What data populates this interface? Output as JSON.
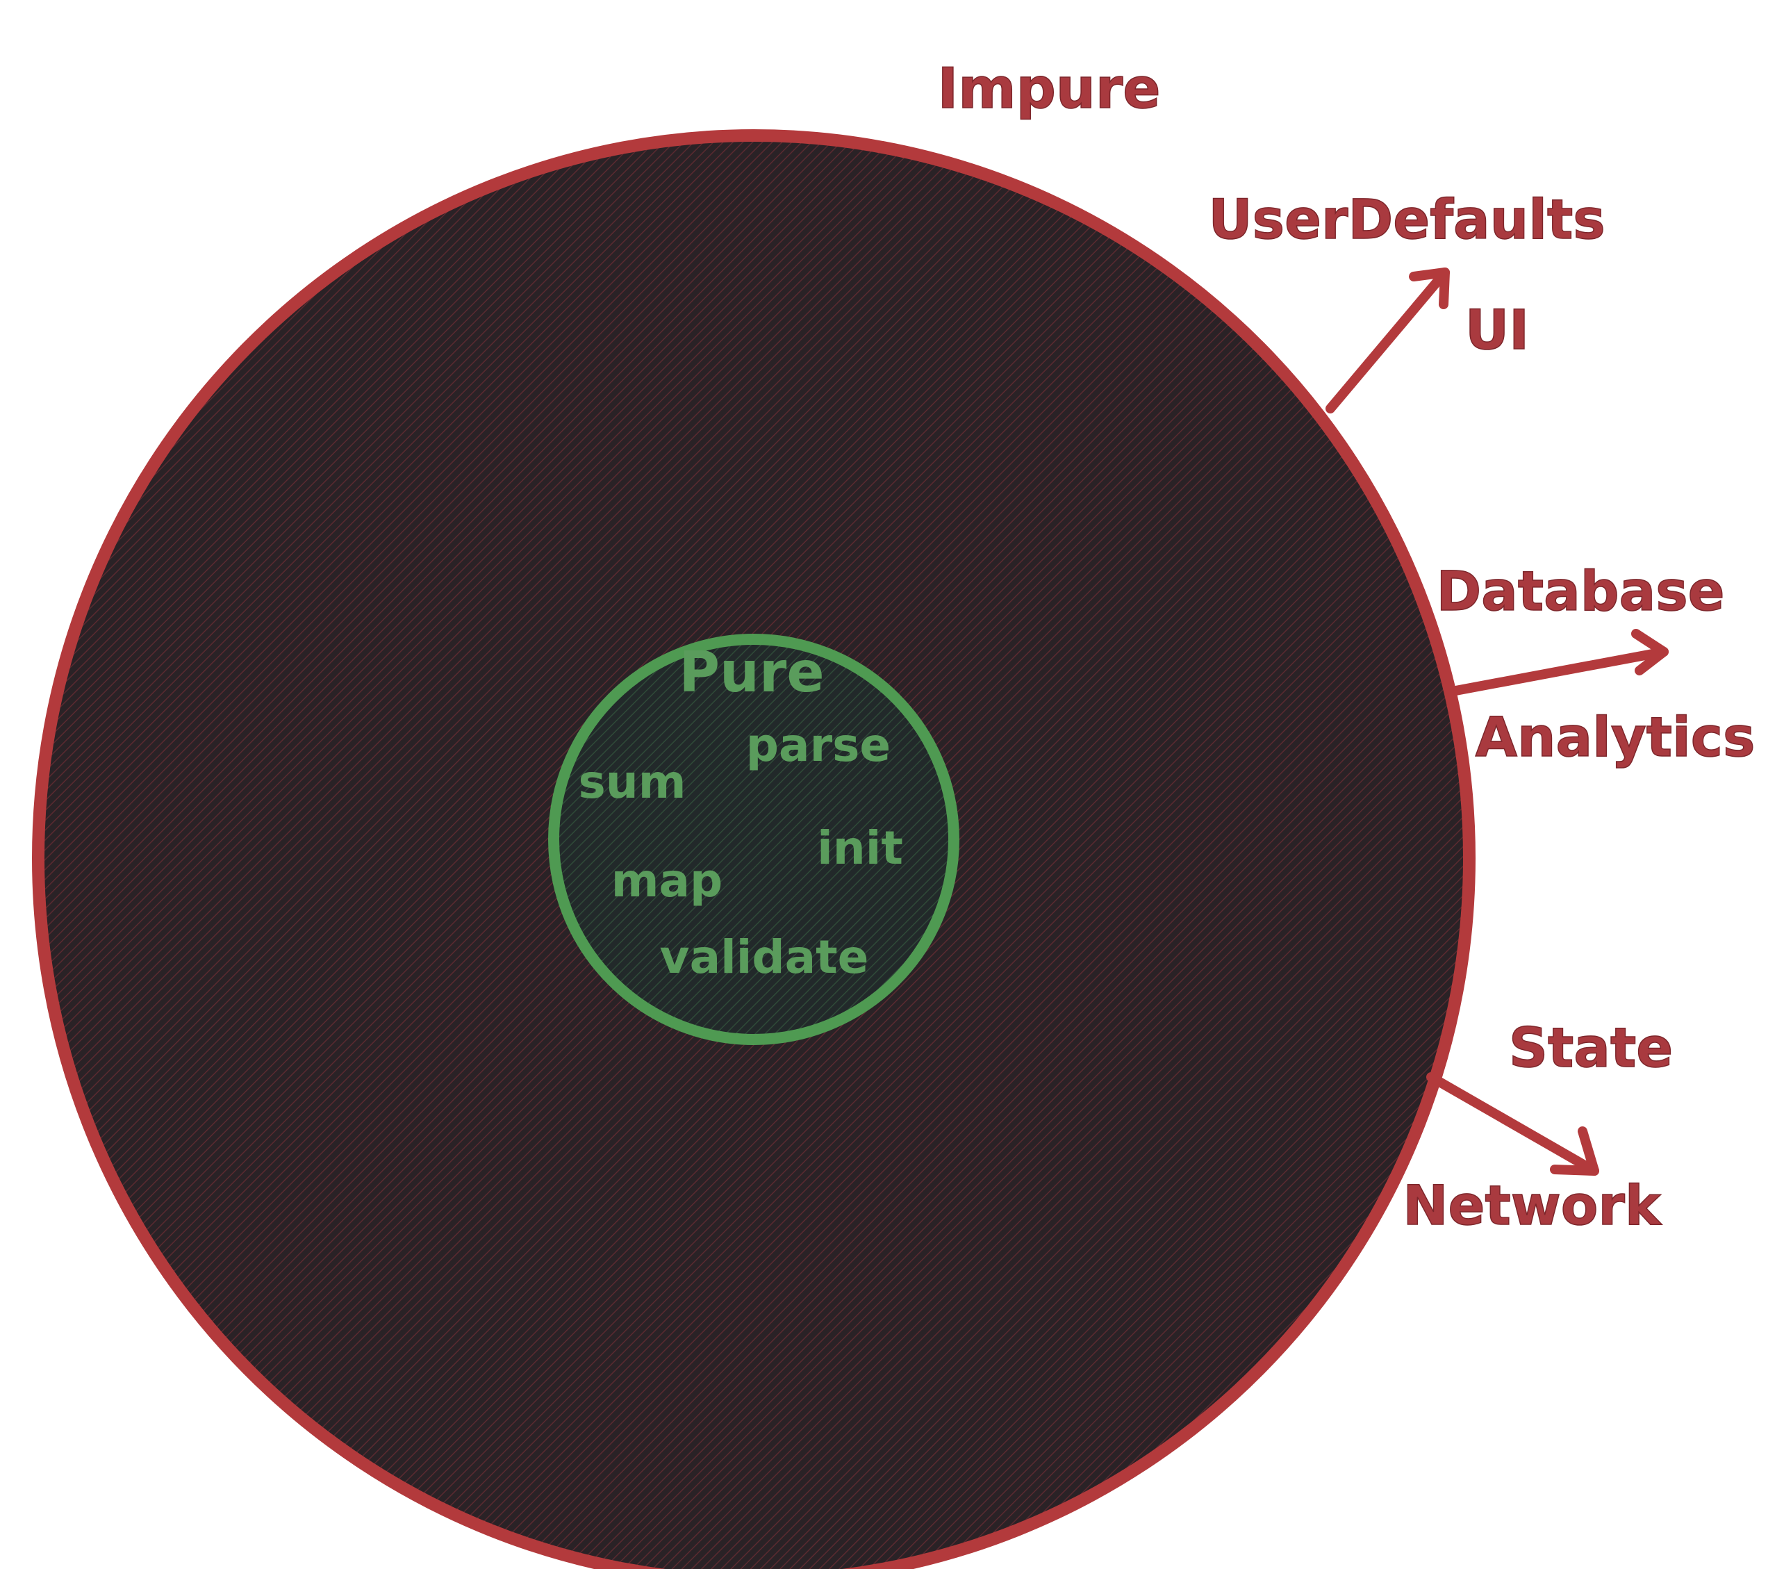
{
  "colors": {
    "impure": "#b33a3c",
    "pure": "#4f9a52",
    "fill_dark": "#2a2226",
    "hatch_red": "#5a2a30",
    "hatch_green": "#2f4a38"
  },
  "impure": {
    "title": "Impure",
    "effects": [
      {
        "top": "UserDefaults",
        "bottom": "UI"
      },
      {
        "top": "Database",
        "bottom": "Analytics"
      },
      {
        "top": "State",
        "bottom": "Network"
      }
    ]
  },
  "pure": {
    "title": "Pure",
    "functions": [
      "parse",
      "sum",
      "init",
      "map",
      "validate"
    ]
  }
}
